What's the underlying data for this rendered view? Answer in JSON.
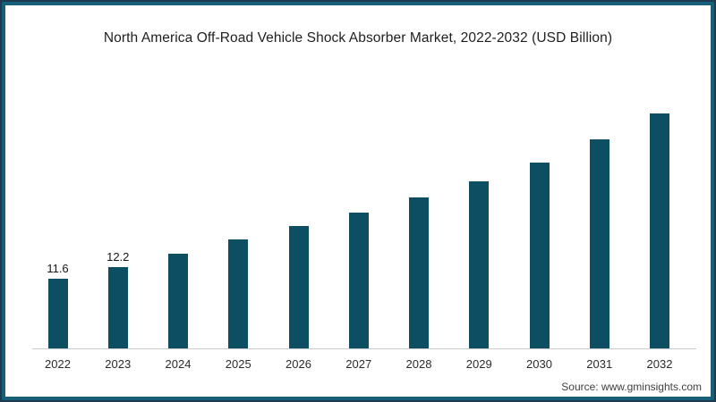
{
  "chart_data": {
    "type": "bar",
    "title": "North America Off-Road Vehicle Shock Absorber Market, 2022-2032 (USD Billion)",
    "categories": [
      "2022",
      "2023",
      "2024",
      "2025",
      "2026",
      "2027",
      "2028",
      "2029",
      "2030",
      "2031",
      "2032"
    ],
    "values": [
      11.6,
      12.2,
      12.9,
      13.6,
      14.3,
      15.0,
      15.8,
      16.6,
      17.6,
      18.8,
      20.1
    ],
    "data_labels": [
      "11.6",
      "12.2",
      "",
      "",
      "",
      "",
      "",
      "",
      "",
      "",
      ""
    ],
    "xlabel": "",
    "ylabel": "",
    "y_baseline": 8,
    "ylim": [
      8,
      21
    ],
    "grid": false,
    "legend": false,
    "bar_color": "#0e4e63",
    "axis_line_color": "#cccccc"
  },
  "source": {
    "label": "Source: www.gminsights.com"
  },
  "frame": {
    "outer_color": "#1d3a50",
    "inner_color": "#186079"
  }
}
